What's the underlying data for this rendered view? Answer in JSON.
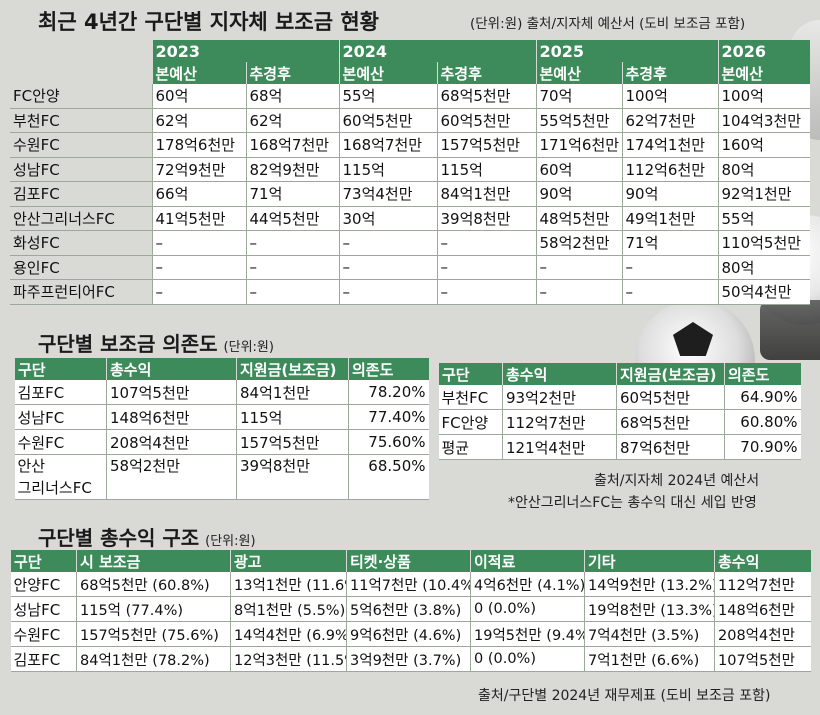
{
  "section1": {
    "title": "최근 4년간 구단별 지자체 보조금 현황",
    "unit_note": "(단위:원) 출처/지자체 예산서 (도비 보조금 포함)",
    "years": [
      "2023",
      "2024",
      "2025",
      "2026"
    ],
    "subheaders": [
      "본예산",
      "추경후",
      "본예산",
      "추경후",
      "본예산",
      "추경후",
      "본예산"
    ],
    "rows": [
      {
        "team": "FC안양",
        "values": [
          "60억",
          "68억",
          "55억",
          "68억5천만",
          "70억",
          "100억",
          "100억"
        ]
      },
      {
        "team": "부천FC",
        "values": [
          "62억",
          "62억",
          "60억5천만",
          "60억5천만",
          "55억5천만",
          "62억7천만",
          "104억3천만"
        ]
      },
      {
        "team": "수원FC",
        "values": [
          "178억6천만",
          "168억7천만",
          "168억7천만",
          "157억5천만",
          "171억6천만",
          "174억1천만",
          "160억"
        ]
      },
      {
        "team": "성남FC",
        "values": [
          "72억9천만",
          "82억9천만",
          "115억",
          "115억",
          "60억",
          "112억6천만",
          "80억"
        ]
      },
      {
        "team": "김포FC",
        "values": [
          "66억",
          "71억",
          "73억4천만",
          "84억1천만",
          "90억",
          "90억",
          "92억1천만"
        ]
      },
      {
        "team": "안산그리너스FC",
        "values": [
          "41억5천만",
          "44억5천만",
          "30억",
          "39억8천만",
          "48억5천만",
          "49억1천만",
          "55억"
        ]
      },
      {
        "team": "화성FC",
        "values": [
          "–",
          "–",
          "–",
          "–",
          "58억2천만",
          "71억",
          "110억5천만"
        ]
      },
      {
        "team": "용인FC",
        "values": [
          "–",
          "–",
          "–",
          "–",
          "–",
          "–",
          "80억"
        ]
      },
      {
        "team": "파주프런티어FC",
        "values": [
          "–",
          "–",
          "–",
          "–",
          "–",
          "–",
          "50억4천만"
        ]
      }
    ]
  },
  "section2": {
    "title": "구단별 보조금 의존도",
    "unit": "(단위:원)",
    "headers": [
      "구단",
      "총수익",
      "지원금(보조금)",
      "의존도"
    ],
    "left_rows": [
      {
        "team": "김포FC",
        "revenue": "107억5천만",
        "subsidy": "84억1천만",
        "ratio": "78.20%"
      },
      {
        "team": "성남FC",
        "revenue": "148억6천만",
        "subsidy": "115억",
        "ratio": "77.40%"
      },
      {
        "team": "수원FC",
        "revenue": "208억4천만",
        "subsidy": "157억5천만",
        "ratio": "75.60%"
      },
      {
        "team": "안산\n그리너스FC",
        "revenue": "58억2천만",
        "subsidy": "39억8천만",
        "ratio": "68.50%"
      }
    ],
    "right_rows": [
      {
        "team": "부천FC",
        "revenue": "93억2천만",
        "subsidy": "60억5천만",
        "ratio": "64.90%"
      },
      {
        "team": "FC안양",
        "revenue": "112억7천만",
        "subsidy": "68억5천만",
        "ratio": "60.80%"
      },
      {
        "team": "평균",
        "revenue": "121억4천만",
        "subsidy": "87억6천만",
        "ratio": "70.90%"
      }
    ],
    "source": "출처/지자체 2024년 예산서",
    "footnote": "*안산그리너스FC는 총수익 대신 세입 반영"
  },
  "section3": {
    "title": "구단별 총수익 구조",
    "unit": "(단위:원)",
    "headers": [
      "구단",
      "시 보조금",
      "광고",
      "티켓·상품",
      "이적료",
      "기타",
      "총수익"
    ],
    "rows": [
      {
        "team": "안양FC",
        "values": [
          "68억5천만 (60.8%)",
          "13억1천만 (11.6%)",
          "11억7천만 (10.4%)",
          "4억6천만 (4.1%)",
          "14억9천만 (13.2%)",
          "112억7천만"
        ]
      },
      {
        "team": "성남FC",
        "values": [
          "115억 (77.4%)",
          "8억1천만 (5.5%)",
          "5억6천만 (3.8%)",
          "0 (0.0%)",
          "19억8천만 (13.3%)",
          "148억6천만"
        ]
      },
      {
        "team": "수원FC",
        "values": [
          "157억5천만 (75.6%)",
          "14억4천만 (6.9%)",
          "9억6천만 (4.6%)",
          "19억5천만 (9.4%)",
          "7억4천만 (3.5%)",
          "208억4천만"
        ]
      },
      {
        "team": "김포FC",
        "values": [
          "84억1천만 (78.2%)",
          "12억3천만 (11.5%)",
          "3억9천만 (3.7%)",
          "0 (0.0%)",
          "7억1천만 (6.6%)",
          "107억5천만"
        ]
      }
    ],
    "source": "출처/구단별 2024년 재무제표 (도비 보조금 포함)"
  }
}
